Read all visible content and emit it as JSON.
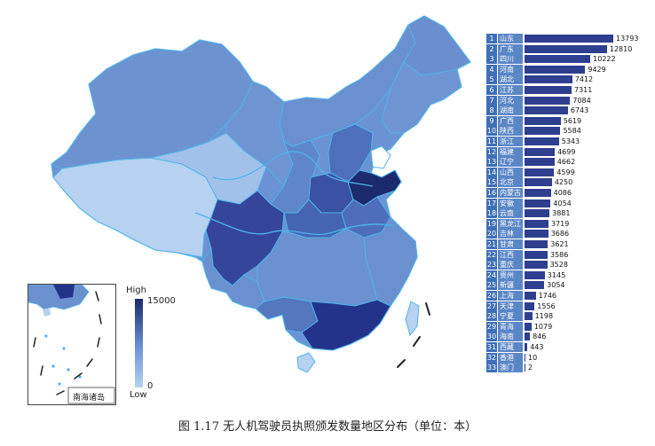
{
  "legend": {
    "title": "High",
    "low_label": "Low",
    "max_value": "15000",
    "min_value": "0"
  },
  "inset_label": "南海诸岛",
  "caption": "图 1.17  无人机驾驶员执照颁发数量地区分布（单位：本）",
  "colors": {
    "dark": "#1c2a6e",
    "mid": "#6b93d3",
    "light": "#b7d1f0",
    "border": "#4fb4ea"
  },
  "rankings": [
    {
      "rank": "1",
      "name": "山东",
      "value": 13793
    },
    {
      "rank": "2",
      "name": "广东",
      "value": 12810
    },
    {
      "rank": "3",
      "name": "四川",
      "value": 10222
    },
    {
      "rank": "4",
      "name": "河南",
      "value": 9429
    },
    {
      "rank": "5",
      "name": "湖北",
      "value": 7412
    },
    {
      "rank": "6",
      "name": "江苏",
      "value": 7311
    },
    {
      "rank": "7",
      "name": "河北",
      "value": 7084
    },
    {
      "rank": "8",
      "name": "湖南",
      "value": 6743
    },
    {
      "rank": "9",
      "name": "广西",
      "value": 5619
    },
    {
      "rank": "10",
      "name": "陕西",
      "value": 5584
    },
    {
      "rank": "11",
      "name": "浙江",
      "value": 5343
    },
    {
      "rank": "12",
      "name": "福建",
      "value": 4699
    },
    {
      "rank": "13",
      "name": "辽宁",
      "value": 4662
    },
    {
      "rank": "14",
      "name": "山西",
      "value": 4599
    },
    {
      "rank": "15",
      "name": "北京",
      "value": 4250
    },
    {
      "rank": "16",
      "name": "内蒙古",
      "value": 4086
    },
    {
      "rank": "17",
      "name": "安徽",
      "value": 4054
    },
    {
      "rank": "18",
      "name": "云南",
      "value": 3881
    },
    {
      "rank": "19",
      "name": "黑龙江",
      "value": 3719
    },
    {
      "rank": "20",
      "name": "吉林",
      "value": 3686
    },
    {
      "rank": "21",
      "name": "甘肃",
      "value": 3621
    },
    {
      "rank": "22",
      "name": "江西",
      "value": 3586
    },
    {
      "rank": "23",
      "name": "重庆",
      "value": 3528
    },
    {
      "rank": "24",
      "name": "贵州",
      "value": 3145
    },
    {
      "rank": "25",
      "name": "新疆",
      "value": 3054
    },
    {
      "rank": "26",
      "name": "上海",
      "value": 1746
    },
    {
      "rank": "27",
      "name": "天津",
      "value": 1556
    },
    {
      "rank": "28",
      "name": "宁夏",
      "value": 1198
    },
    {
      "rank": "29",
      "name": "青海",
      "value": 1079
    },
    {
      "rank": "30",
      "name": "海南",
      "value": 846
    },
    {
      "rank": "31",
      "name": "西藏",
      "value": 443
    },
    {
      "rank": "32",
      "name": "香港",
      "value": 10
    },
    {
      "rank": "33",
      "name": "澳门",
      "value": 2
    }
  ]
}
